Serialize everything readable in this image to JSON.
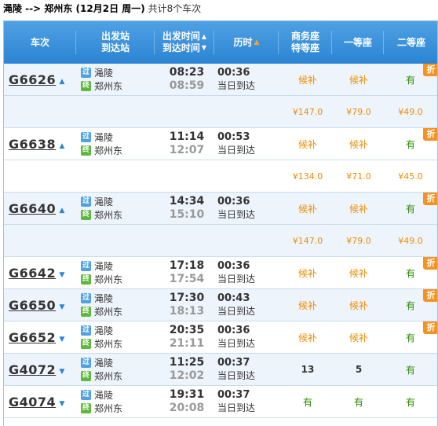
{
  "summary": {
    "route": "渑陵 --> 郑州东 (12月2日  周一)",
    "count_text": "共计8个车次"
  },
  "header": {
    "train": "车次",
    "stations_top": "出发站",
    "stations_bottom": "到达站",
    "times_top": "出发时间",
    "times_bottom": "到达时间",
    "duration": "历时",
    "business_top": "商务座",
    "business_bottom": "特等座",
    "first": "一等座",
    "second": "二等座"
  },
  "labels": {
    "pass_badge": "过",
    "end_badge": "终",
    "same_day": "当日到达",
    "discount": "折"
  },
  "trains": [
    {
      "no": "G6626",
      "from": "渑陵",
      "to": "郑州东",
      "dep": "08:23",
      "arr": "08:59",
      "dur": "00:36",
      "business": "候补",
      "first": "候补",
      "second": "有",
      "price_business": "¥147.0",
      "price_first": "¥79.0",
      "price_second": "¥49.0"
    },
    {
      "no": "G6638",
      "from": "渑陵",
      "to": "郑州东",
      "dep": "11:14",
      "arr": "12:07",
      "dur": "00:53",
      "business": "候补",
      "first": "候补",
      "second": "有",
      "price_business": "¥134.0",
      "price_first": "¥71.0",
      "price_second": "¥45.0"
    },
    {
      "no": "G6640",
      "from": "渑陵",
      "to": "郑州东",
      "dep": "14:34",
      "arr": "15:10",
      "dur": "00:36",
      "business": "候补",
      "first": "候补",
      "second": "有",
      "price_business": "¥147.0",
      "price_first": "¥79.0",
      "price_second": "¥49.0"
    },
    {
      "no": "G6642",
      "from": "渑陵",
      "to": "郑州东",
      "dep": "17:18",
      "arr": "17:54",
      "dur": "00:36",
      "business": "候补",
      "first": "候补",
      "second": "有"
    },
    {
      "no": "G6650",
      "from": "渑陵",
      "to": "郑州东",
      "dep": "17:30",
      "arr": "18:13",
      "dur": "00:43",
      "business": "候补",
      "first": "候补",
      "second": "有"
    },
    {
      "no": "G6652",
      "from": "渑陵",
      "to": "郑州东",
      "dep": "20:35",
      "arr": "21:11",
      "dur": "00:36",
      "business": "候补",
      "first": "候补",
      "second": "有"
    },
    {
      "no": "G4072",
      "from": "渑陵",
      "to": "郑州东",
      "dep": "11:25",
      "arr": "12:02",
      "dur": "00:37",
      "business": "13",
      "first": "5",
      "second": "有"
    },
    {
      "no": "G4074",
      "from": "渑陵",
      "to": "郑州东",
      "dep": "19:31",
      "arr": "20:08",
      "dur": "00:37",
      "business": "有",
      "first": "有",
      "second": "有"
    }
  ]
}
